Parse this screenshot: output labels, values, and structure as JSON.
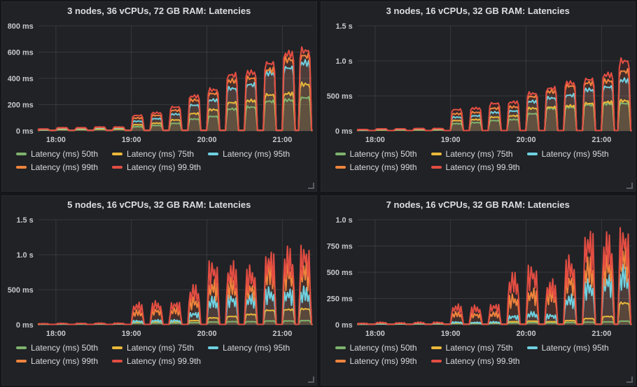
{
  "theme": {
    "page_bg": "#141619",
    "panel_bg": "#202226",
    "grid_color": "rgba(255,255,255,0.10)",
    "tick_text_color": "#c7c8ca",
    "title_color": "#dcdde0",
    "legend_text_color": "#d8d9da",
    "resize_handle_color": "#5a5d62"
  },
  "series_palette": {
    "p50": "#7EB26D",
    "p75": "#EAB839",
    "p95": "#6ED0E0",
    "p99": "#EF843C",
    "p999": "#E24D42"
  },
  "chart_data": [
    {
      "type": "area",
      "title": "3 nodes, 36 vCPUs, 72 GB RAM: Latencies",
      "style": "plateau",
      "legend_position": "bottom",
      "grid": true,
      "x_range": [
        "17:46",
        "21:24"
      ],
      "xticks": [
        "18:00",
        "19:00",
        "20:00",
        "21:00"
      ],
      "ylim": [
        0,
        800
      ],
      "yticks": [
        {
          "value": 0,
          "label": "0 ms"
        },
        {
          "value": 200,
          "label": "200 ms"
        },
        {
          "value": 400,
          "label": "400 ms"
        },
        {
          "value": 600,
          "label": "600 ms"
        },
        {
          "value": 800,
          "label": "800 ms"
        }
      ],
      "baseline_ms": 4,
      "burst_times": [
        "17:50",
        "18:05",
        "18:20",
        "18:35",
        "18:50",
        "19:05",
        "19:20",
        "19:35",
        "19:50",
        "20:05",
        "20:20",
        "20:35",
        "20:50",
        "21:05",
        "21:18"
      ],
      "series": [
        {
          "name": "Latency (ms) 50th",
          "color": "#7EB26D",
          "values": [
            6,
            10,
            10,
            12,
            12,
            32,
            42,
            58,
            92,
            112,
            170,
            185,
            230,
            240,
            258
          ]
        },
        {
          "name": "Latency (ms) 75th",
          "color": "#EAB839",
          "values": [
            8,
            14,
            14,
            16,
            16,
            48,
            60,
            85,
            135,
            165,
            220,
            235,
            280,
            290,
            363
          ]
        },
        {
          "name": "Latency (ms) 95th",
          "color": "#6ED0E0",
          "values": [
            10,
            18,
            18,
            22,
            22,
            75,
            95,
            130,
            200,
            240,
            330,
            360,
            450,
            490,
            530
          ]
        },
        {
          "name": "Latency (ms) 99th",
          "color": "#EF843C",
          "values": [
            13,
            22,
            22,
            27,
            27,
            100,
            120,
            160,
            240,
            290,
            390,
            410,
            475,
            555,
            585
          ]
        },
        {
          "name": "Latency (ms) 99.9th",
          "color": "#E24D42",
          "values": [
            15,
            25,
            25,
            30,
            30,
            120,
            140,
            185,
            270,
            320,
            435,
            455,
            525,
            600,
            625
          ]
        }
      ]
    },
    {
      "type": "area",
      "title": "3 nodes, 16 vCPUs, 32 GB RAM: Latencies",
      "style": "plateau",
      "legend_position": "bottom",
      "grid": true,
      "x_range": [
        "17:46",
        "21:24"
      ],
      "xticks": [
        "18:00",
        "19:00",
        "20:00",
        "21:00"
      ],
      "ylim": [
        0,
        1500
      ],
      "yticks": [
        {
          "value": 0,
          "label": "0 ms"
        },
        {
          "value": 500,
          "label": "500 ms"
        },
        {
          "value": 1000,
          "label": "1.0 s"
        },
        {
          "value": 1500,
          "label": "1.5 s"
        }
      ],
      "baseline_ms": 5,
      "burst_times": [
        "17:50",
        "18:05",
        "18:20",
        "18:35",
        "18:50",
        "19:05",
        "19:20",
        "19:35",
        "19:50",
        "20:05",
        "20:20",
        "20:35",
        "20:50",
        "21:05",
        "21:18"
      ],
      "series": [
        {
          "name": "Latency (ms) 50th",
          "color": "#7EB26D",
          "values": [
            8,
            12,
            12,
            14,
            14,
            105,
            120,
            150,
            165,
            250,
            330,
            345,
            380,
            395,
            400
          ]
        },
        {
          "name": "Latency (ms) 75th",
          "color": "#EAB839",
          "values": [
            10,
            16,
            16,
            18,
            18,
            150,
            165,
            200,
            220,
            330,
            345,
            365,
            400,
            420,
            440
          ]
        },
        {
          "name": "Latency (ms) 95th",
          "color": "#6ED0E0",
          "values": [
            14,
            22,
            22,
            25,
            25,
            200,
            220,
            270,
            290,
            430,
            480,
            520,
            600,
            640,
            740
          ]
        },
        {
          "name": "Latency (ms) 99th",
          "color": "#EF843C",
          "values": [
            18,
            27,
            27,
            30,
            30,
            250,
            270,
            330,
            350,
            500,
            575,
            655,
            700,
            730,
            870
          ]
        },
        {
          "name": "Latency (ms) 99.9th",
          "color": "#E24D42",
          "values": [
            20,
            30,
            30,
            35,
            35,
            310,
            330,
            400,
            420,
            545,
            620,
            700,
            750,
            820,
            1020
          ]
        }
      ]
    },
    {
      "type": "area",
      "title": "5 nodes, 16 vCPUs, 32 GB RAM: Latencies",
      "style": "spiky",
      "legend_position": "bottom",
      "grid": true,
      "x_range": [
        "17:46",
        "21:24"
      ],
      "xticks": [
        "18:00",
        "19:00",
        "20:00",
        "21:00"
      ],
      "ylim": [
        0,
        1500
      ],
      "yticks": [
        {
          "value": 0,
          "label": "0 ms"
        },
        {
          "value": 500,
          "label": "500 ms"
        },
        {
          "value": 1000,
          "label": "1.0 s"
        },
        {
          "value": 1500,
          "label": "1.5 s"
        }
      ],
      "baseline_ms": 5,
      "burst_times": [
        "17:50",
        "18:05",
        "18:20",
        "18:35",
        "18:50",
        "19:05",
        "19:20",
        "19:35",
        "19:50",
        "20:05",
        "20:20",
        "20:35",
        "20:50",
        "21:05",
        "21:18"
      ],
      "series": [
        {
          "name": "Latency (ms) 50th",
          "color": "#7EB26D",
          "values": [
            7,
            9,
            9,
            10,
            10,
            25,
            25,
            25,
            30,
            40,
            45,
            45,
            55,
            55,
            60
          ]
        },
        {
          "name": "Latency (ms) 75th",
          "color": "#EAB839",
          "values": [
            9,
            12,
            12,
            13,
            13,
            40,
            45,
            45,
            60,
            100,
            120,
            150,
            210,
            220,
            230
          ]
        },
        {
          "name": "Latency (ms) 95th",
          "color": "#6ED0E0",
          "values": [
            12,
            15,
            15,
            17,
            17,
            60,
            70,
            70,
            180,
            390,
            420,
            430,
            520,
            510,
            530
          ]
        },
        {
          "name": "Latency (ms) 99th",
          "color": "#EF843C",
          "values": [
            15,
            19,
            19,
            21,
            21,
            205,
            230,
            240,
            380,
            630,
            650,
            600,
            880,
            860,
            900
          ]
        },
        {
          "name": "Latency (ms) 99.9th",
          "color": "#E24D42",
          "values": [
            18,
            22,
            22,
            25,
            25,
            310,
            330,
            330,
            550,
            900,
            880,
            820,
            1050,
            1080,
            1130
          ]
        }
      ]
    },
    {
      "type": "area",
      "title": "7 nodes, 16 vCPUs, 32 GB RAM: Latencies",
      "style": "spiky",
      "legend_position": "bottom",
      "grid": true,
      "x_range": [
        "17:46",
        "21:24"
      ],
      "xticks": [
        "18:00",
        "19:00",
        "20:00",
        "21:00"
      ],
      "ylim": [
        0,
        1000
      ],
      "yticks": [
        {
          "value": 0,
          "label": "0 ms"
        },
        {
          "value": 250,
          "label": "250 ms"
        },
        {
          "value": 500,
          "label": "500 ms"
        },
        {
          "value": 750,
          "label": "750 ms"
        },
        {
          "value": 1000,
          "label": "1.0 s"
        }
      ],
      "baseline_ms": 4,
      "burst_times": [
        "17:50",
        "18:05",
        "18:20",
        "18:35",
        "18:50",
        "19:05",
        "19:20",
        "19:35",
        "19:50",
        "20:05",
        "20:20",
        "20:35",
        "20:50",
        "21:05",
        "21:18"
      ],
      "series": [
        {
          "name": "Latency (ms) 50th",
          "color": "#7EB26D",
          "values": [
            5,
            7,
            7,
            8,
            8,
            12,
            12,
            14,
            18,
            20,
            18,
            22,
            25,
            28,
            35
          ]
        },
        {
          "name": "Latency (ms) 75th",
          "color": "#EAB839",
          "values": [
            6,
            9,
            9,
            10,
            10,
            18,
            18,
            20,
            30,
            35,
            30,
            40,
            60,
            80,
            210
          ]
        },
        {
          "name": "Latency (ms) 95th",
          "color": "#6ED0E0",
          "values": [
            8,
            12,
            12,
            14,
            14,
            28,
            25,
            30,
            90,
            120,
            100,
            280,
            420,
            480,
            550
          ]
        },
        {
          "name": "Latency (ms) 99th",
          "color": "#EF843C",
          "values": [
            12,
            20,
            17,
            20,
            20,
            120,
            110,
            120,
            280,
            340,
            330,
            480,
            620,
            650,
            750
          ]
        },
        {
          "name": "Latency (ms) 99.9th",
          "color": "#E24D42",
          "values": [
            15,
            25,
            20,
            25,
            25,
            190,
            180,
            200,
            480,
            560,
            420,
            640,
            900,
            850,
            920
          ]
        }
      ]
    }
  ]
}
